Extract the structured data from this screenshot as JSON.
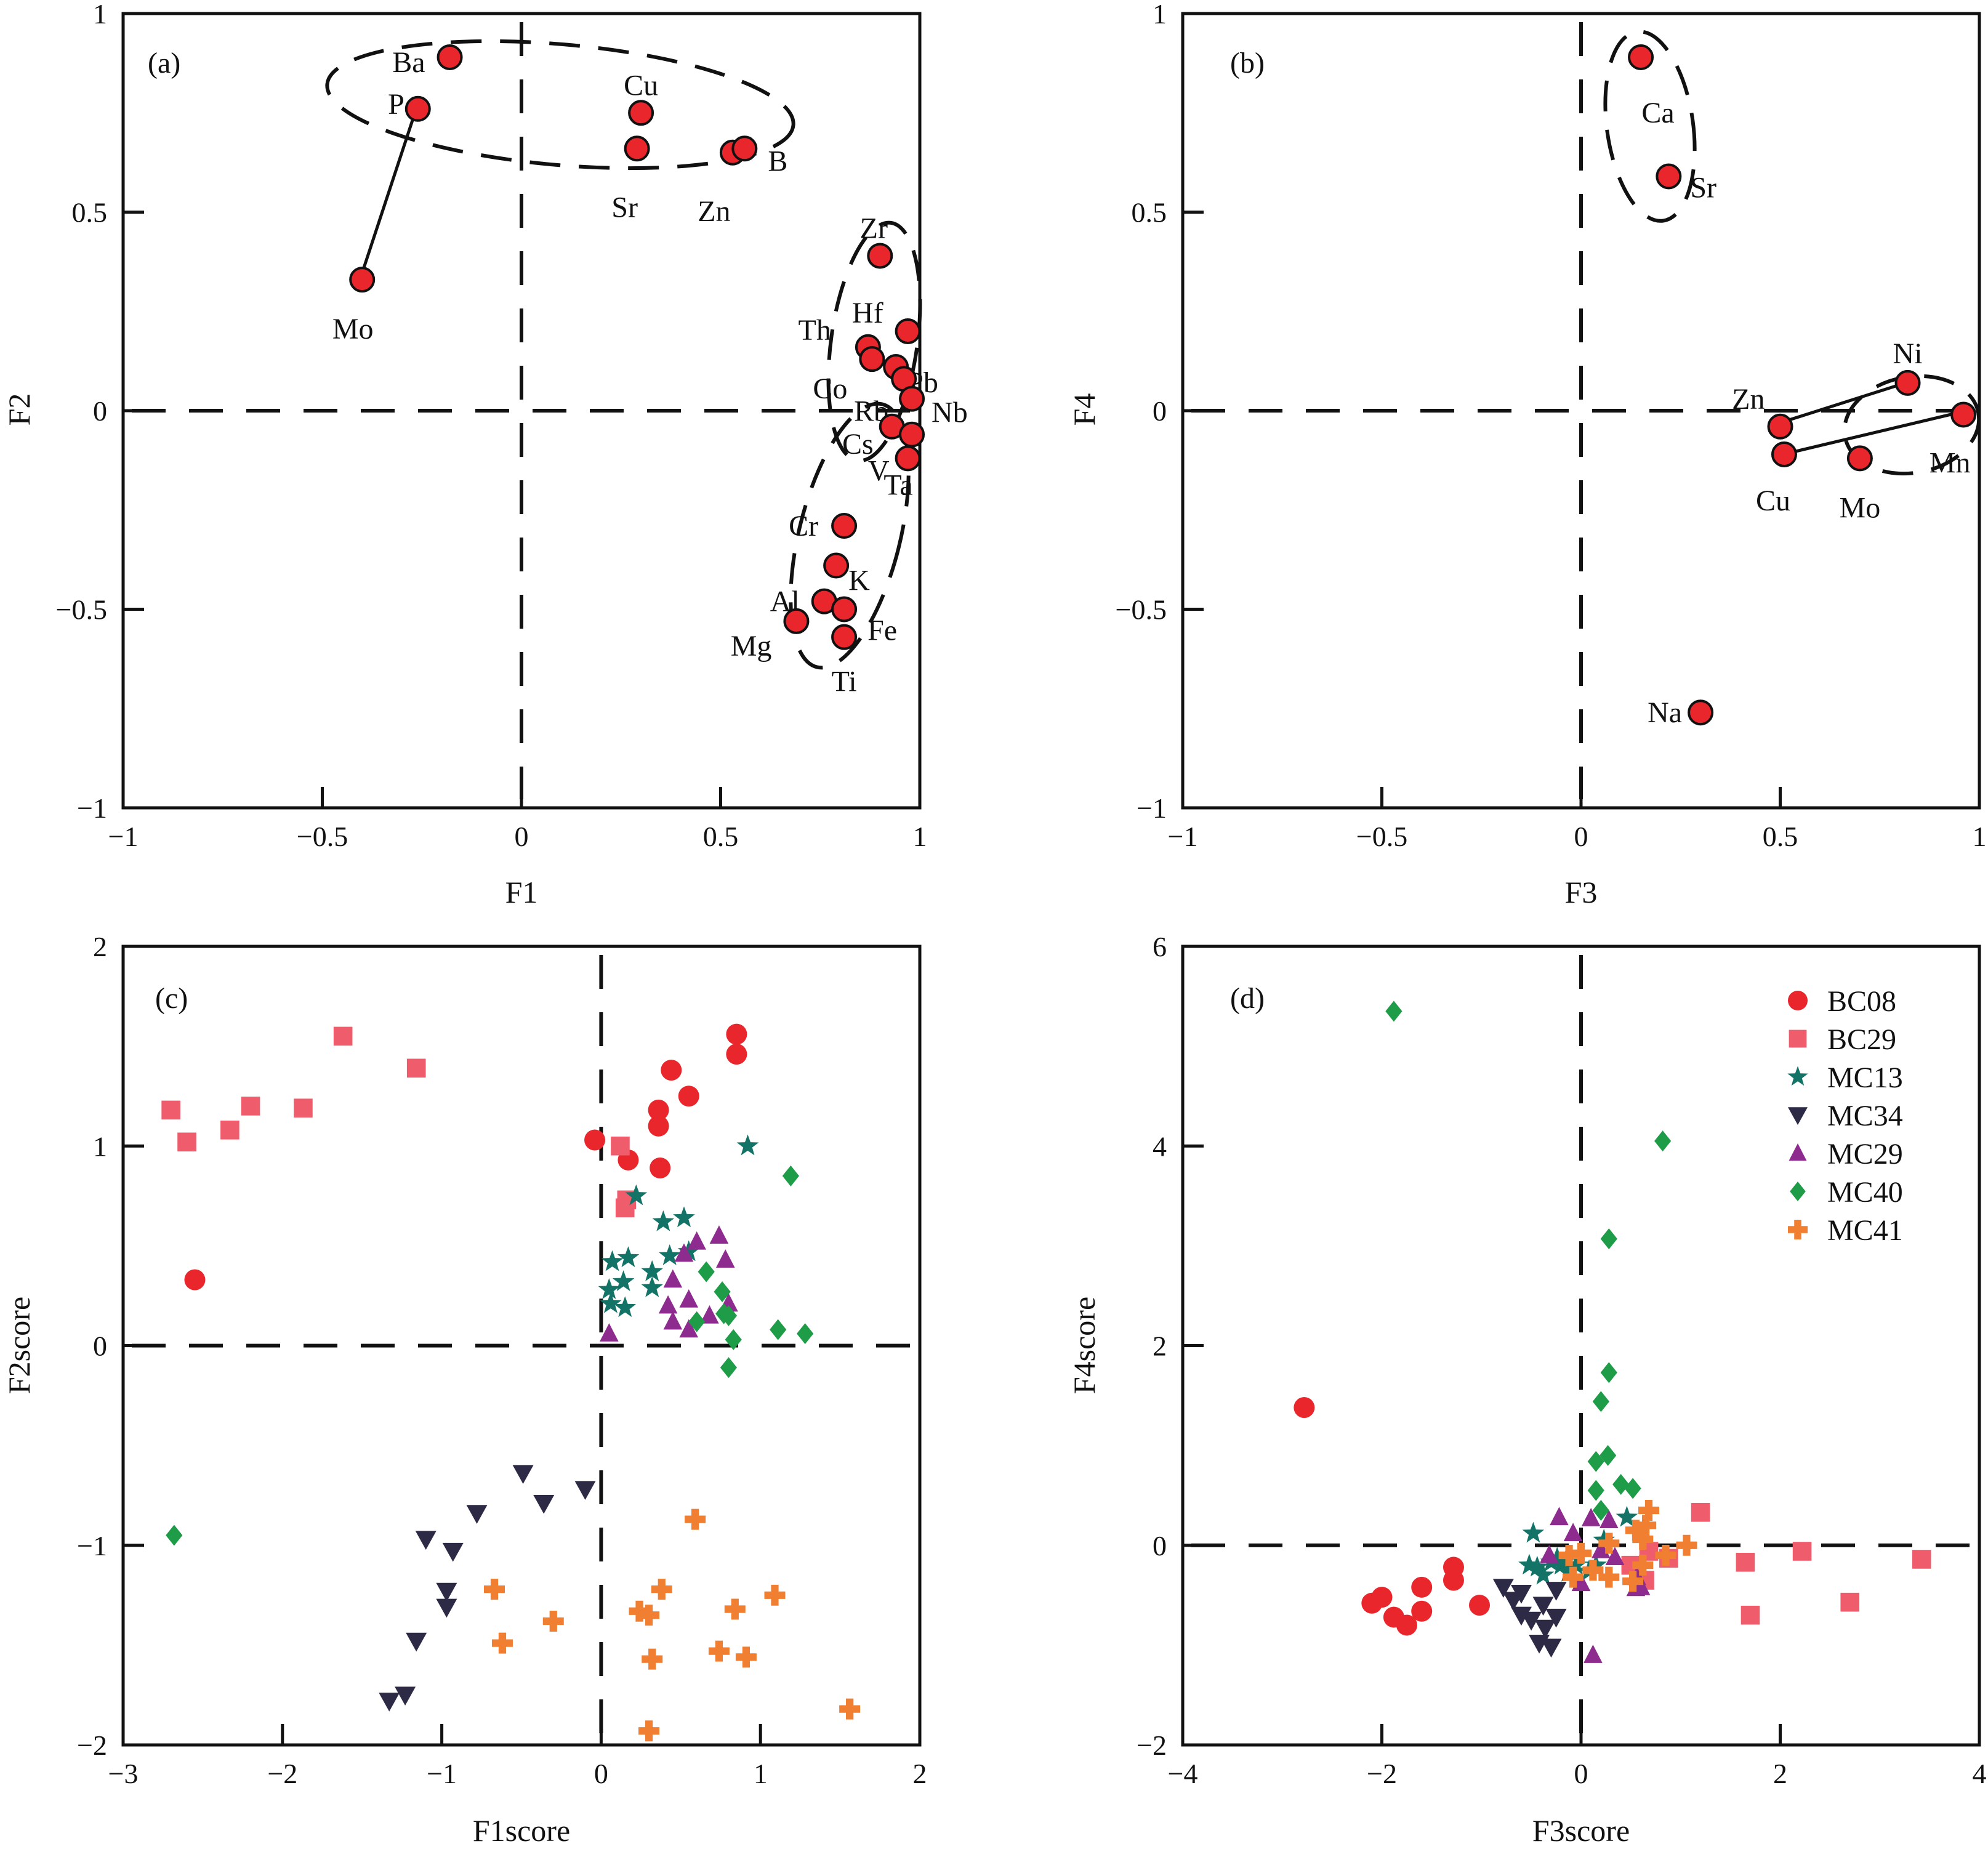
{
  "chart_data": [
    {
      "panel": "(a)",
      "type": "scatter",
      "xlabel": "F1",
      "ylabel": "F2",
      "xlim": [
        -1,
        1
      ],
      "ylim": [
        -1,
        1
      ],
      "xticks": [
        "−1",
        "−0.5",
        "0",
        "0.5",
        "1"
      ],
      "yticks": [
        "−1",
        "−0.5",
        "0",
        "0.5",
        "1"
      ],
      "points": [
        {
          "label": "Ba",
          "x": -0.18,
          "y": 0.89
        },
        {
          "label": "P",
          "x": -0.26,
          "y": 0.76
        },
        {
          "label": "Mo",
          "x": -0.4,
          "y": 0.33
        },
        {
          "label": "Cu",
          "x": 0.3,
          "y": 0.75
        },
        {
          "label": "Sr",
          "x": 0.29,
          "y": 0.66
        },
        {
          "label": "Zn",
          "x": 0.53,
          "y": 0.65
        },
        {
          "label": "B",
          "x": 0.56,
          "y": 0.66
        },
        {
          "label": "Zr",
          "x": 0.9,
          "y": 0.39
        },
        {
          "label": "Hf",
          "x": 0.97,
          "y": 0.2
        },
        {
          "label": "Th",
          "x": 0.87,
          "y": 0.16
        },
        {
          "label": "Co",
          "x": 0.88,
          "y": 0.13
        },
        {
          "label": "Pb",
          "x": 0.94,
          "y": 0.11
        },
        {
          "label": "Rb",
          "x": 0.96,
          "y": 0.08
        },
        {
          "label": "Nb",
          "x": 0.98,
          "y": 0.03
        },
        {
          "label": "Cs",
          "x": 0.93,
          "y": -0.04
        },
        {
          "label": "Ta",
          "x": 0.98,
          "y": -0.06
        },
        {
          "label": "V",
          "x": 0.97,
          "y": -0.12
        },
        {
          "label": "Cr",
          "x": 0.81,
          "y": -0.29
        },
        {
          "label": "K",
          "x": 0.79,
          "y": -0.39
        },
        {
          "label": "Al",
          "x": 0.76,
          "y": -0.48
        },
        {
          "label": "Fe",
          "x": 0.81,
          "y": -0.5
        },
        {
          "label": "Mg",
          "x": 0.69,
          "y": -0.53
        },
        {
          "label": "Ti",
          "x": 0.81,
          "y": -0.57
        }
      ]
    },
    {
      "panel": "(b)",
      "type": "scatter",
      "xlabel": "F3",
      "ylabel": "F4",
      "xlim": [
        -1,
        1
      ],
      "ylim": [
        -1,
        1
      ],
      "xticks": [
        "−1",
        "−0.5",
        "0",
        "0.5",
        "1"
      ],
      "yticks": [
        "−1",
        "−0.5",
        "0",
        "0.5",
        "1"
      ],
      "points": [
        {
          "label": "Ca",
          "x": 0.15,
          "y": 0.89
        },
        {
          "label": "Sr",
          "x": 0.22,
          "y": 0.59
        },
        {
          "label": "Ni",
          "x": 0.82,
          "y": 0.07
        },
        {
          "label": "Zn",
          "x": 0.5,
          "y": -0.04
        },
        {
          "label": "Mn",
          "x": 0.96,
          "y": -0.01
        },
        {
          "label": "Cu",
          "x": 0.51,
          "y": -0.11
        },
        {
          "label": "Mo",
          "x": 0.7,
          "y": -0.12
        },
        {
          "label": "Na",
          "x": 0.3,
          "y": -0.76
        }
      ]
    },
    {
      "panel": "(c)",
      "type": "scatter",
      "xlabel": "F1score",
      "ylabel": "F2score",
      "xlim": [
        -3,
        2
      ],
      "ylim": [
        -2,
        2
      ],
      "xticks": [
        "−3",
        "−2",
        "−1",
        "0",
        "1",
        "2"
      ],
      "yticks": [
        "−2",
        "−1",
        "0",
        "1",
        "2"
      ],
      "series": [
        {
          "name": "BC08",
          "points": [
            [
              0.85,
              1.56
            ],
            [
              0.85,
              1.46
            ],
            [
              0.44,
              1.38
            ],
            [
              0.55,
              1.25
            ],
            [
              0.36,
              1.18
            ],
            [
              0.36,
              1.1
            ],
            [
              -0.04,
              1.03
            ],
            [
              0.17,
              0.93
            ],
            [
              0.37,
              0.89
            ],
            [
              -2.55,
              0.33
            ]
          ]
        },
        {
          "name": "BC29",
          "points": [
            [
              -1.62,
              1.55
            ],
            [
              -1.16,
              1.39
            ],
            [
              -2.7,
              1.18
            ],
            [
              -2.2,
              1.2
            ],
            [
              -1.87,
              1.19
            ],
            [
              -2.33,
              1.08
            ],
            [
              -2.6,
              1.02
            ],
            [
              0.12,
              1.0
            ],
            [
              0.16,
              0.73
            ],
            [
              0.15,
              0.69
            ]
          ]
        },
        {
          "name": "MC13",
          "points": [
            [
              0.92,
              1.0
            ],
            [
              0.22,
              0.75
            ],
            [
              0.52,
              0.64
            ],
            [
              0.39,
              0.62
            ],
            [
              0.07,
              0.42
            ],
            [
              0.17,
              0.44
            ],
            [
              0.55,
              0.47
            ],
            [
              0.43,
              0.45
            ],
            [
              0.32,
              0.37
            ],
            [
              0.14,
              0.32
            ],
            [
              0.06,
              0.21
            ],
            [
              0.15,
              0.19
            ],
            [
              0.05,
              0.28
            ],
            [
              0.32,
              0.29
            ]
          ]
        },
        {
          "name": "MC34",
          "points": [
            [
              -0.49,
              -0.64
            ],
            [
              -0.1,
              -0.72
            ],
            [
              -0.36,
              -0.79
            ],
            [
              -0.78,
              -0.84
            ],
            [
              -1.1,
              -0.97
            ],
            [
              -0.93,
              -1.03
            ],
            [
              -0.97,
              -1.23
            ],
            [
              -0.97,
              -1.31
            ],
            [
              -1.16,
              -1.48
            ],
            [
              -1.23,
              -1.75
            ],
            [
              -1.33,
              -1.78
            ]
          ]
        },
        {
          "name": "MC29",
          "points": [
            [
              0.74,
              0.55
            ],
            [
              0.6,
              0.52
            ],
            [
              0.52,
              0.46
            ],
            [
              0.78,
              0.43
            ],
            [
              0.45,
              0.33
            ],
            [
              0.55,
              0.23
            ],
            [
              0.8,
              0.21
            ],
            [
              0.68,
              0.15
            ],
            [
              0.42,
              0.2
            ],
            [
              0.45,
              0.12
            ],
            [
              0.55,
              0.08
            ],
            [
              0.05,
              0.06
            ]
          ]
        },
        {
          "name": "MC40",
          "points": [
            [
              1.19,
              0.85
            ],
            [
              0.66,
              0.37
            ],
            [
              0.76,
              0.27
            ],
            [
              0.8,
              0.15
            ],
            [
              0.6,
              0.12
            ],
            [
              0.77,
              0.16
            ],
            [
              0.83,
              0.03
            ],
            [
              1.11,
              0.08
            ],
            [
              1.28,
              0.06
            ],
            [
              0.8,
              -0.11
            ],
            [
              -2.68,
              -0.95
            ]
          ]
        },
        {
          "name": "MC41",
          "points": [
            [
              0.59,
              -0.87
            ],
            [
              -0.67,
              -1.22
            ],
            [
              0.38,
              -1.22
            ],
            [
              1.09,
              -1.25
            ],
            [
              0.24,
              -1.33
            ],
            [
              0.3,
              -1.35
            ],
            [
              0.84,
              -1.32
            ],
            [
              -0.3,
              -1.38
            ],
            [
              -0.62,
              -1.49
            ],
            [
              0.74,
              -1.53
            ],
            [
              0.91,
              -1.56
            ],
            [
              0.32,
              -1.57
            ],
            [
              1.56,
              -1.82
            ],
            [
              0.3,
              -1.93
            ]
          ]
        }
      ]
    },
    {
      "panel": "(d)",
      "type": "scatter",
      "xlabel": "F3score",
      "ylabel": "F4score",
      "xlim": [
        -4,
        4
      ],
      "ylim": [
        -2,
        6
      ],
      "xticks": [
        "−4",
        "−2",
        "0",
        "2",
        "4"
      ],
      "yticks": [
        "−2",
        "0",
        "2",
        "4",
        "6"
      ],
      "legend_position": "top-right",
      "legend": [
        "BC08",
        "BC29",
        "MC13",
        "MC34",
        "MC29",
        "MC40",
        "MC41"
      ],
      "series": [
        {
          "name": "BC08",
          "points": [
            [
              -2.78,
              1.38
            ],
            [
              -1.28,
              -0.22
            ],
            [
              -1.28,
              -0.35
            ],
            [
              -1.6,
              -0.42
            ],
            [
              -2.0,
              -0.52
            ],
            [
              -2.1,
              -0.58
            ],
            [
              -1.6,
              -0.66
            ],
            [
              -1.02,
              -0.6
            ],
            [
              -1.88,
              -0.72
            ],
            [
              -1.75,
              -0.8
            ]
          ]
        },
        {
          "name": "BC29",
          "points": [
            [
              1.2,
              0.33
            ],
            [
              2.22,
              -0.06
            ],
            [
              3.42,
              -0.14
            ],
            [
              1.65,
              -0.17
            ],
            [
              0.88,
              -0.13
            ],
            [
              0.68,
              -0.06
            ],
            [
              2.7,
              -0.57
            ],
            [
              1.7,
              -0.7
            ],
            [
              0.64,
              -0.35
            ],
            [
              0.5,
              -0.2
            ]
          ]
        },
        {
          "name": "MC13",
          "points": [
            [
              -0.48,
              0.12
            ],
            [
              0.46,
              0.28
            ],
            [
              0.23,
              0.05
            ],
            [
              -0.52,
              -0.2
            ],
            [
              -0.3,
              -0.17
            ],
            [
              -0.2,
              -0.2
            ],
            [
              -0.38,
              -0.3
            ],
            [
              -0.05,
              -0.2
            ],
            [
              -0.13,
              -0.27
            ],
            [
              0.08,
              -0.26
            ],
            [
              -0.24,
              -0.13
            ],
            [
              -0.44,
              -0.22
            ],
            [
              -0.15,
              -0.15
            ],
            [
              0.15,
              -0.2
            ]
          ]
        },
        {
          "name": "MC34",
          "points": [
            [
              -0.78,
              -0.42
            ],
            [
              -0.6,
              -0.48
            ],
            [
              -0.68,
              -0.55
            ],
            [
              -0.38,
              -0.6
            ],
            [
              -0.25,
              -0.45
            ],
            [
              -0.5,
              -0.75
            ],
            [
              -0.25,
              -0.72
            ],
            [
              -0.36,
              -0.83
            ],
            [
              -0.42,
              -0.98
            ],
            [
              -0.3,
              -1.02
            ],
            [
              -0.6,
              -0.7
            ]
          ]
        },
        {
          "name": "MC29",
          "points": [
            [
              -0.22,
              0.28
            ],
            [
              0.28,
              0.25
            ],
            [
              0.1,
              0.27
            ],
            [
              -0.08,
              0.12
            ],
            [
              0.2,
              -0.05
            ],
            [
              0.34,
              -0.12
            ],
            [
              0.56,
              -0.32
            ],
            [
              0.6,
              -0.42
            ],
            [
              0.55,
              -0.43
            ],
            [
              0.0,
              -0.38
            ],
            [
              0.12,
              -1.1
            ],
            [
              -0.32,
              -0.1
            ]
          ]
        },
        {
          "name": "MC40",
          "points": [
            [
              -1.88,
              5.35
            ],
            [
              0.82,
              4.05
            ],
            [
              0.28,
              3.07
            ],
            [
              0.28,
              1.73
            ],
            [
              0.2,
              1.44
            ],
            [
              0.15,
              0.84
            ],
            [
              0.27,
              0.9
            ],
            [
              0.4,
              0.61
            ],
            [
              0.52,
              0.57
            ],
            [
              0.15,
              0.55
            ],
            [
              0.2,
              0.35
            ]
          ]
        },
        {
          "name": "MC41",
          "points": [
            [
              0.68,
              0.35
            ],
            [
              0.65,
              0.2
            ],
            [
              0.55,
              0.15
            ],
            [
              0.62,
              0.06
            ],
            [
              0.28,
              0.02
            ],
            [
              1.06,
              0.0
            ],
            [
              0.0,
              -0.08
            ],
            [
              -0.12,
              -0.1
            ],
            [
              0.85,
              -0.1
            ],
            [
              0.62,
              -0.2
            ],
            [
              0.12,
              -0.25
            ],
            [
              0.28,
              -0.32
            ],
            [
              0.52,
              -0.36
            ],
            [
              -0.08,
              -0.32
            ]
          ]
        }
      ]
    }
  ],
  "colors": {
    "BC08": "#e8262c",
    "BC29": "#ef5c6b",
    "MC13": "#137367",
    "MC34": "#2d2a46",
    "MC29": "#8d2b8e",
    "MC40": "#1f9c48",
    "MC41": "#f07f32",
    "loading_marker": "#e8262c"
  },
  "markers": {
    "BC08": "circle",
    "BC29": "square",
    "MC13": "star",
    "MC34": "triangle-down",
    "MC29": "triangle-up",
    "MC40": "diamond",
    "MC41": "plus"
  }
}
